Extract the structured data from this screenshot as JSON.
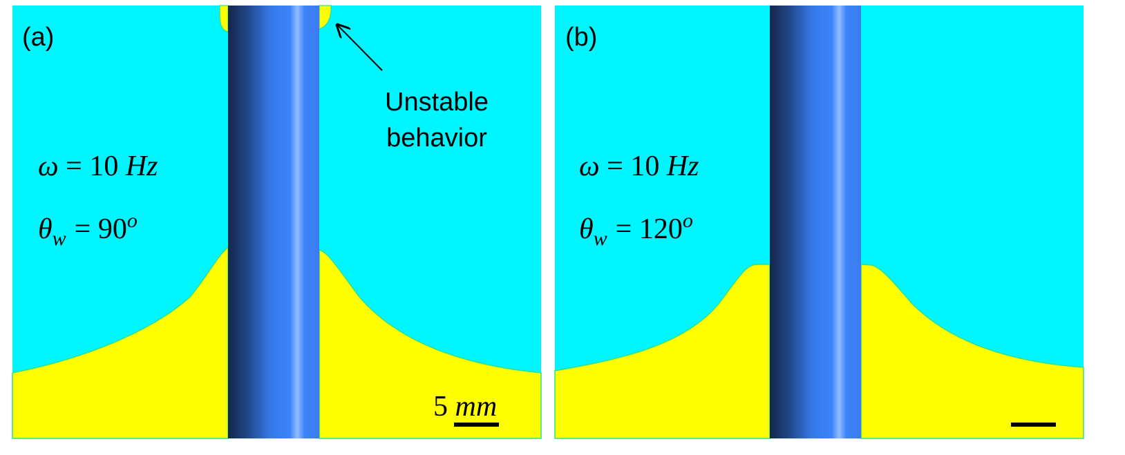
{
  "panels": [
    {
      "label": "(a)",
      "omega": {
        "symbol": "ω",
        "relation": "= 10",
        "unit": "Hz"
      },
      "theta": {
        "symbol": "θ",
        "subscript": "w",
        "relation": "= 90",
        "superscript": "o"
      },
      "scale_bar": {
        "number": "5",
        "unit": "mm"
      },
      "annotation": [
        "Unstable",
        "behavior"
      ]
    },
    {
      "label": "(b)",
      "omega": {
        "symbol": "ω",
        "relation": "= 10",
        "unit": "Hz"
      },
      "theta": {
        "symbol": "θ",
        "subscript": "w",
        "relation": "= 120",
        "superscript": "o"
      }
    }
  ]
}
